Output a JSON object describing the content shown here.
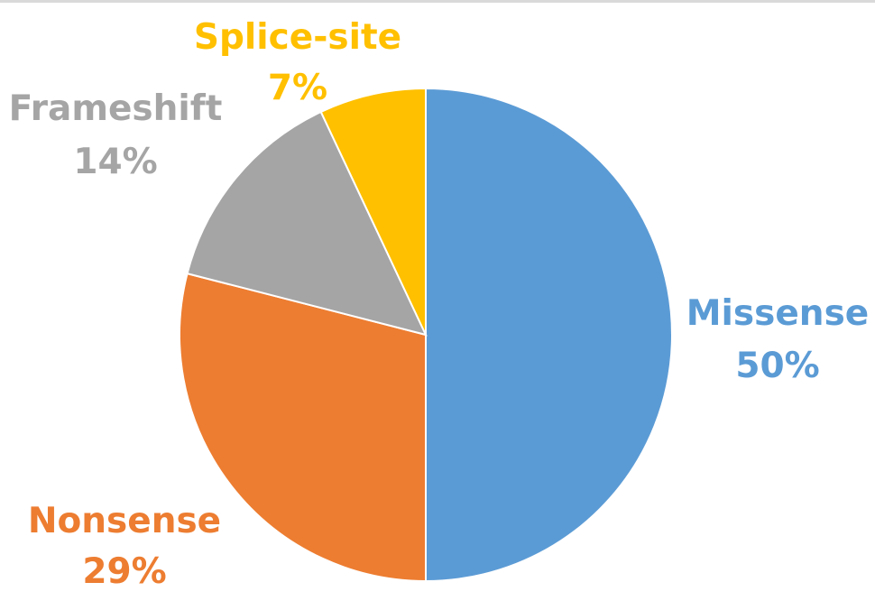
{
  "chart_data": {
    "type": "pie",
    "title": "",
    "start_angle_deg": 0,
    "direction": "clockwise",
    "slices": [
      {
        "name": "Missense",
        "value": 50,
        "label": "50%",
        "color": "#5b9bd5"
      },
      {
        "name": "Nonsense",
        "value": 29,
        "label": "29%",
        "color": "#ed7d31"
      },
      {
        "name": "Frameshift",
        "value": 14,
        "label": "14%",
        "color": "#a5a5a5"
      },
      {
        "name": "Splice-site",
        "value": 7,
        "label": "7%",
        "color": "#ffc000"
      }
    ],
    "legend": "none",
    "data_labels": "outside"
  }
}
